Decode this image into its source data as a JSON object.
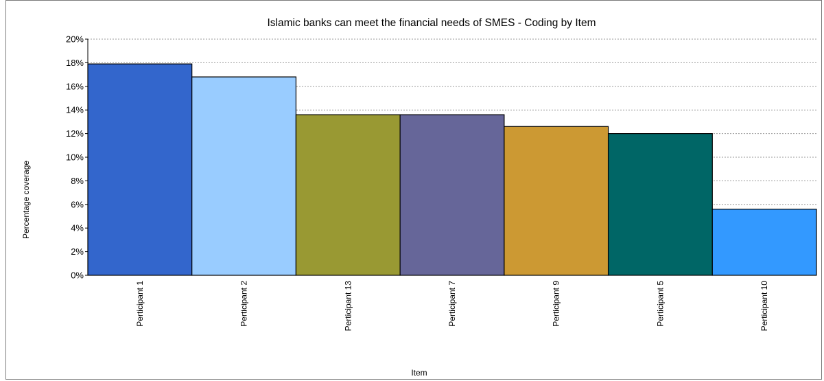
{
  "chart_data": {
    "type": "bar",
    "title": "Islamic banks can meet the financial needs of SMES - Coding by Item",
    "xlabel": "Item",
    "ylabel": "Percentage coverage",
    "categories": [
      "Perticipant 1",
      "Perticipant 2",
      "Perticipant 13",
      "Perticipant 7",
      "Perticipant 9",
      "Perticipant 5",
      "Perticipant 10"
    ],
    "values": [
      17.9,
      16.8,
      13.6,
      13.6,
      12.6,
      12.0,
      5.6
    ],
    "colors": [
      "#3366cc",
      "#99ccff",
      "#999933",
      "#666699",
      "#cc9933",
      "#006666",
      "#3399ff"
    ],
    "ylim": [
      0,
      20
    ],
    "yticks": [
      "0%",
      "2%",
      "4%",
      "6%",
      "8%",
      "10%",
      "12%",
      "14%",
      "16%",
      "18%",
      "20%"
    ],
    "grid": true,
    "legend": "none"
  }
}
